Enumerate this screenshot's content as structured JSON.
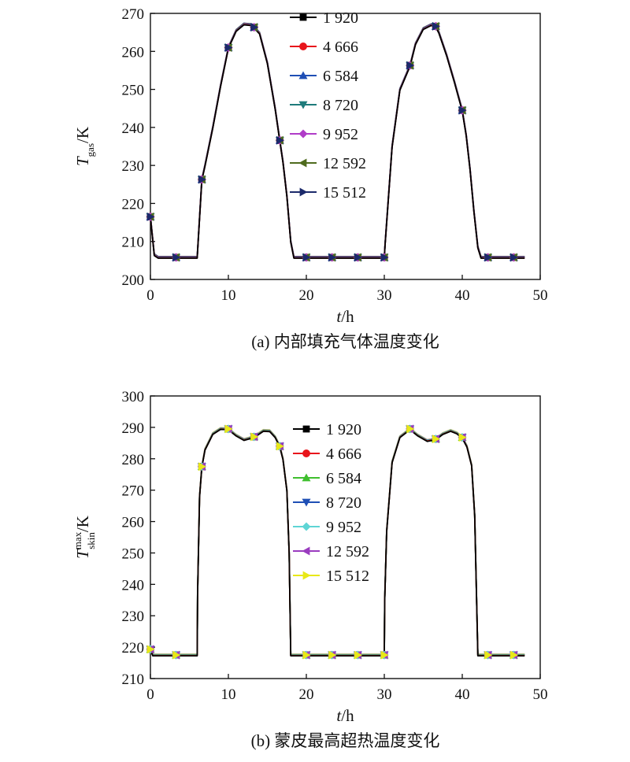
{
  "chart_data": [
    {
      "type": "line",
      "caption": "(a) 内部填充气体温度变化",
      "xlabel": "t/h",
      "ylabel": "Tgas/K",
      "ylabel_main": "T",
      "ylabel_sub": "gas",
      "ylabel_sup": "",
      "ylabel_unit": "/K",
      "xlabel_main": "t",
      "xlabel_unit": "/h",
      "xlim": [
        0,
        50
      ],
      "ylim": [
        200,
        270
      ],
      "xticks": [
        0,
        10,
        20,
        30,
        40,
        50
      ],
      "yticks": [
        200,
        210,
        220,
        230,
        240,
        250,
        260,
        270
      ],
      "grid": false,
      "legend_position": "top-center",
      "series": [
        {
          "name": "1 920",
          "color": "#000000",
          "marker": "square"
        },
        {
          "name": "4 666",
          "color": "#e8151b",
          "marker": "circle"
        },
        {
          "name": "6 584",
          "color": "#1f4fb5",
          "marker": "triangle-up"
        },
        {
          "name": "8 720",
          "color": "#1e7b7b",
          "marker": "triangle-down"
        },
        {
          "name": "9 952",
          "color": "#b03cc8",
          "marker": "diamond"
        },
        {
          "name": "12 592",
          "color": "#4f6b1e",
          "marker": "triangle-left"
        },
        {
          "name": "15 512",
          "color": "#1c2a6b",
          "marker": "triangle-right"
        }
      ],
      "curve": {
        "x": [
          0,
          0.5,
          1,
          3.3,
          6,
          6.6,
          7,
          8,
          9,
          10,
          11,
          12,
          13,
          14,
          15,
          16,
          16.6,
          17,
          17.5,
          18,
          18.4,
          20,
          23.3,
          26.6,
          30,
          30.1,
          31,
          32,
          33.3,
          34,
          35,
          36,
          36.6,
          37,
          38,
          39,
          40,
          40.5,
          41,
          41.5,
          42,
          42.4,
          43.3,
          46.6,
          48
        ],
        "y": [
          216.5,
          206.5,
          205.8,
          205.8,
          205.8,
          226.3,
          230,
          240,
          251,
          261,
          265.5,
          267.2,
          267,
          264.8,
          257,
          245,
          236.6,
          231,
          222,
          210,
          205.8,
          205.8,
          205.8,
          205.8,
          205.8,
          209.3,
          235,
          250,
          256.3,
          262,
          266,
          267,
          266.6,
          265,
          259,
          252,
          244.5,
          238,
          229,
          218,
          208.5,
          205.8,
          205.8,
          205.8,
          205.8
        ]
      },
      "markers_x": [
        0,
        3.3,
        6.6,
        10,
        13.3,
        16.6,
        20,
        23.3,
        26.6,
        30,
        33.3,
        36.6,
        40,
        43.3,
        46.6
      ]
    },
    {
      "type": "line",
      "caption": "(b) 蒙皮最高超热温度变化",
      "xlabel": "t/h",
      "ylabel": "Tskin max/K",
      "ylabel_main": "T",
      "ylabel_sub": "skin",
      "ylabel_sup": "max",
      "ylabel_unit": "/K",
      "xlabel_main": "t",
      "xlabel_unit": "/h",
      "xlim": [
        0,
        50
      ],
      "ylim": [
        210,
        300
      ],
      "xticks": [
        0,
        10,
        20,
        30,
        40,
        50
      ],
      "yticks": [
        210,
        220,
        230,
        240,
        250,
        260,
        270,
        280,
        290,
        300
      ],
      "grid": false,
      "legend_position": "top-center",
      "series": [
        {
          "name": "1 920",
          "color": "#000000",
          "marker": "square"
        },
        {
          "name": "4 666",
          "color": "#e8151b",
          "marker": "circle"
        },
        {
          "name": "6 584",
          "color": "#3fbf2e",
          "marker": "triangle-up"
        },
        {
          "name": "8 720",
          "color": "#1f4fb5",
          "marker": "triangle-down"
        },
        {
          "name": "9 952",
          "color": "#5fd5d5",
          "marker": "diamond"
        },
        {
          "name": "12 592",
          "color": "#9a3cbf",
          "marker": "triangle-left"
        },
        {
          "name": "15 512",
          "color": "#e8e818",
          "marker": "triangle-right"
        }
      ],
      "curve": {
        "x": [
          0,
          0.3,
          1,
          3.3,
          6,
          6.05,
          6.3,
          6.6,
          7,
          8,
          9,
          10,
          11,
          12,
          13.3,
          14.5,
          15.3,
          16,
          16.6,
          17,
          17.5,
          17.8,
          18,
          20,
          23.3,
          26.6,
          30,
          30.05,
          30.3,
          31,
          32,
          33.3,
          34.3,
          35.5,
          36.6,
          37.5,
          38.5,
          39.3,
          40,
          40.6,
          41.2,
          41.6,
          42,
          43.3,
          46.6,
          48
        ],
        "y": [
          219.3,
          217.5,
          217.5,
          217.5,
          217.5,
          237,
          268,
          277.5,
          283,
          288,
          289.6,
          289.5,
          287.5,
          286.1,
          287,
          289,
          288.9,
          287,
          284,
          280,
          270,
          250,
          217.5,
          217.5,
          217.5,
          217.5,
          217.5,
          235,
          257,
          279,
          287,
          289.5,
          287.5,
          285.8,
          286.3,
          288,
          289,
          288.2,
          286.8,
          284,
          278,
          262,
          217.5,
          217.5,
          217.5,
          217.5
        ]
      },
      "markers_x": [
        0,
        3.3,
        6.6,
        10,
        13.3,
        16.6,
        20,
        23.3,
        26.6,
        30,
        33.3,
        36.6,
        40,
        43.3,
        46.6
      ]
    }
  ]
}
